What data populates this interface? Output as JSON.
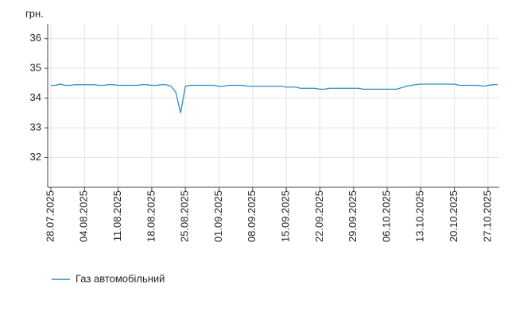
{
  "chart_data": {
    "type": "line",
    "y_label": "грн.",
    "categories": [
      "28.07.2025",
      null,
      null,
      null,
      null,
      null,
      null,
      "04.08.2025",
      null,
      null,
      null,
      null,
      null,
      null,
      "11.08.2025",
      null,
      null,
      null,
      null,
      null,
      null,
      "18.08.2025",
      null,
      null,
      null,
      null,
      null,
      null,
      "25.08.2025",
      null,
      null,
      null,
      null,
      null,
      null,
      "01.09.2025",
      null,
      null,
      null,
      null,
      null,
      null,
      "08.09.2025",
      null,
      null,
      null,
      null,
      null,
      null,
      "15.09.2025",
      null,
      null,
      null,
      null,
      null,
      null,
      "22.09.2025",
      null,
      null,
      null,
      null,
      null,
      null,
      "29.09.2025",
      null,
      null,
      null,
      null,
      null,
      null,
      "06.10.2025",
      null,
      null,
      null,
      null,
      null,
      null,
      "13.10.2025",
      null,
      null,
      null,
      null,
      null,
      null,
      "20.10.2025",
      null,
      null,
      null,
      null,
      null,
      null,
      "27.10.2025",
      null,
      null
    ],
    "series": [
      {
        "name": "Газ автомобільний",
        "color": "#2b8cc4",
        "values": [
          34.43,
          34.43,
          34.47,
          34.43,
          34.43,
          34.45,
          34.45,
          34.45,
          34.45,
          34.45,
          34.43,
          34.43,
          34.45,
          34.45,
          34.43,
          34.43,
          34.43,
          34.43,
          34.43,
          34.45,
          34.45,
          34.43,
          34.43,
          34.45,
          34.45,
          34.4,
          34.2,
          33.5,
          34.4,
          34.43,
          34.43,
          34.43,
          34.43,
          34.43,
          34.43,
          34.4,
          34.4,
          34.43,
          34.43,
          34.43,
          34.43,
          34.4,
          34.4,
          34.4,
          34.4,
          34.4,
          34.4,
          34.4,
          34.4,
          34.37,
          34.37,
          34.37,
          34.33,
          34.33,
          34.33,
          34.33,
          34.3,
          34.3,
          34.33,
          34.33,
          34.33,
          34.33,
          34.33,
          34.33,
          34.33,
          34.3,
          34.3,
          34.3,
          34.3,
          34.3,
          34.3,
          34.3,
          34.3,
          34.35,
          34.4,
          34.43,
          34.45,
          34.47,
          34.47,
          34.47,
          34.47,
          34.47,
          34.47,
          34.47,
          34.47,
          34.43,
          34.43,
          34.43,
          34.43,
          34.43,
          34.4,
          34.43,
          34.45,
          34.45
        ]
      }
    ],
    "ylim": [
      31,
      36.5
    ],
    "yticks": [
      32,
      33,
      34,
      35,
      36
    ],
    "grid": true,
    "legend": "bottom-left"
  }
}
